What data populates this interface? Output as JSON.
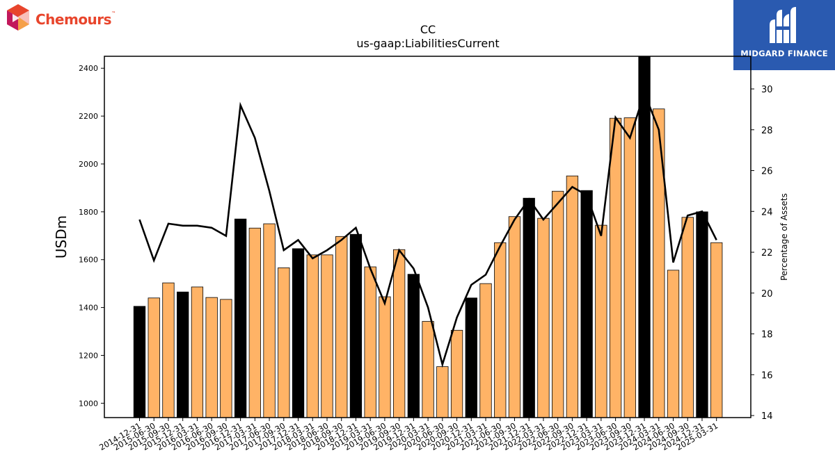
{
  "logos": {
    "left_brand": "Chemours",
    "left_trademark": "™",
    "right_brand": "MIDGARD FINANCE"
  },
  "colors": {
    "bar_orange": "#ffb366",
    "bar_black": "#000000",
    "line": "#000000",
    "chemours_red": "#e8452c",
    "midgard_blue": "#2a5ab0"
  },
  "chart_data": {
    "type": "bar",
    "title": "CC",
    "subtitle": "us-gaap:LiabilitiesCurrent",
    "ylabel": "USDm",
    "y2label": "Percentage of Assets",
    "ylim": [
      940,
      2450
    ],
    "y2lim": [
      13.9,
      31.6
    ],
    "yticks": [
      1000,
      1200,
      1400,
      1600,
      1800,
      2000,
      2200,
      2400
    ],
    "y2ticks": [
      14,
      16,
      18,
      20,
      22,
      24,
      26,
      28,
      30
    ],
    "categories": [
      "2014-12-31",
      "2015-06-30",
      "2015-09-30",
      "2015-12-31",
      "2016-03-31",
      "2016-06-30",
      "2016-09-30",
      "2016-12-31",
      "2017-03-31",
      "2017-06-30",
      "2017-09-30",
      "2017-12-31",
      "2018-03-31",
      "2018-06-30",
      "2018-09-30",
      "2018-12-31",
      "2019-03-31",
      "2019-06-30",
      "2019-09-30",
      "2019-12-31",
      "2020-03-31",
      "2020-06-30",
      "2020-09-30",
      "2020-12-31",
      "2021-03-31",
      "2021-06-30",
      "2021-09-30",
      "2021-12-31",
      "2022-03-31",
      "2022-06-30",
      "2022-09-30",
      "2022-12-31",
      "2023-03-31",
      "2023-06-30",
      "2023-09-30",
      "2023-12-31",
      "2024-03-31",
      "2024-06-30",
      "2024-09-30",
      "2024-12-31",
      "2025-03-31"
    ],
    "series": [
      {
        "kind": "bar",
        "values": [
          1405,
          1440,
          1503,
          1465,
          1486,
          1442,
          1434,
          1770,
          1732,
          1750,
          1566,
          1646,
          1620,
          1620,
          1697,
          1706,
          1570,
          1445,
          1642,
          1539,
          1342,
          1153,
          1305,
          1440,
          1500,
          1671,
          1780,
          1857,
          1773,
          1886,
          1950,
          1889,
          1744,
          2191,
          2193,
          2453,
          2230,
          1556,
          1777,
          1800,
          1671
        ],
        "year_end": [
          true,
          false,
          false,
          true,
          false,
          false,
          false,
          true,
          false,
          false,
          false,
          true,
          false,
          false,
          false,
          true,
          false,
          false,
          false,
          true,
          false,
          false,
          false,
          true,
          false,
          false,
          false,
          true,
          false,
          false,
          false,
          true,
          false,
          false,
          false,
          true,
          false,
          false,
          false,
          true,
          false
        ]
      },
      {
        "kind": "line",
        "axis": "right",
        "values": [
          23.6,
          21.6,
          23.4,
          23.3,
          23.3,
          23.2,
          22.8,
          29.2,
          27.6,
          25.0,
          22.1,
          22.6,
          21.7,
          22.1,
          22.6,
          23.2,
          21.2,
          19.5,
          22.1,
          21.2,
          19.3,
          16.5,
          18.8,
          20.4,
          20.9,
          22.3,
          23.6,
          24.6,
          23.6,
          24.4,
          25.2,
          24.8,
          22.8,
          28.6,
          27.6,
          29.8,
          28.0,
          21.5,
          23.8,
          24.0,
          22.6
        ]
      }
    ]
  }
}
